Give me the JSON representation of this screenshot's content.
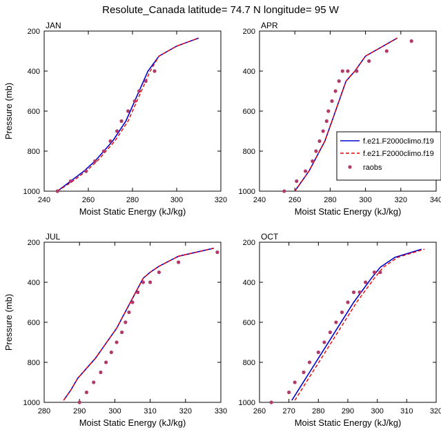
{
  "title": "Resolute_Canada  latitude= 74.7 N longitude= 95 W",
  "legend": {
    "entries": [
      "f.e21.F2000climo.f19",
      "f.e21.F2000climo.f19",
      "raobs"
    ]
  },
  "colors": {
    "model1": "#0000cd",
    "model2": "#ee0000",
    "raobs": "#b03a6a"
  },
  "chart_data": [
    {
      "type": "line",
      "panel": "JAN",
      "xlabel": "Moist Static Energy (kJ/kg)",
      "ylabel": "Pressure (mb)",
      "xlim": [
        240,
        320
      ],
      "ylim": [
        1000,
        200
      ],
      "y_inverted": true,
      "xticks": [
        240,
        260,
        280,
        300,
        320
      ],
      "yticks": [
        200,
        400,
        600,
        800,
        1000
      ],
      "series": [
        {
          "name": "f.e21.F2000climo.f19",
          "x": [
            246,
            252,
            258,
            263,
            267,
            271,
            274,
            277,
            279,
            281,
            283,
            285,
            287,
            292,
            300,
            310
          ],
          "y": [
            1000,
            950,
            900,
            850,
            800,
            750,
            700,
            650,
            600,
            550,
            500,
            450,
            400,
            325,
            275,
            235
          ]
        },
        {
          "name": "f.e21.F2000climo.f19",
          "x": [
            246,
            253,
            259,
            264,
            268,
            272,
            275,
            278,
            280,
            282,
            284,
            286,
            288,
            292,
            300,
            310
          ],
          "y": [
            1000,
            950,
            900,
            850,
            800,
            750,
            700,
            650,
            600,
            550,
            500,
            450,
            400,
            325,
            275,
            235
          ]
        },
        {
          "name": "raobs",
          "x": [
            246,
            252,
            259,
            263,
            267,
            270,
            273,
            275,
            278,
            281,
            283,
            286,
            290
          ],
          "y": [
            1000,
            950,
            900,
            850,
            800,
            750,
            700,
            650,
            600,
            550,
            500,
            450,
            400
          ]
        }
      ]
    },
    {
      "type": "line",
      "panel": "APR",
      "xlabel": "Moist Static Energy (kJ/kg)",
      "ylabel": "",
      "xlim": [
        240,
        340
      ],
      "ylim": [
        1000,
        200
      ],
      "y_inverted": true,
      "xticks": [
        240,
        260,
        280,
        300,
        320,
        340
      ],
      "yticks": [
        200,
        400,
        600,
        800,
        1000
      ],
      "series": [
        {
          "name": "f.e21.F2000climo.f19",
          "x": [
            260,
            264,
            268,
            271,
            274,
            277,
            279,
            281,
            283,
            285,
            287,
            289,
            294,
            300,
            310,
            318
          ],
          "y": [
            1000,
            950,
            900,
            850,
            800,
            750,
            700,
            650,
            600,
            550,
            500,
            450,
            400,
            325,
            275,
            235
          ]
        },
        {
          "name": "f.e21.F2000climo.f19",
          "x": [
            260,
            264,
            268,
            271,
            274,
            277,
            279,
            281,
            283,
            285,
            287,
            289,
            294,
            300,
            310,
            318
          ],
          "y": [
            1000,
            950,
            900,
            850,
            800,
            750,
            700,
            650,
            600,
            550,
            500,
            450,
            400,
            325,
            275,
            235
          ]
        },
        {
          "name": "raobs",
          "x": [
            254,
            261,
            266,
            270,
            272,
            274,
            276,
            278,
            279,
            281,
            283,
            285,
            287,
            290,
            295,
            302,
            312,
            326
          ],
          "y": [
            1000,
            950,
            900,
            850,
            800,
            750,
            700,
            650,
            600,
            550,
            500,
            450,
            400,
            400,
            400,
            350,
            300,
            250
          ]
        }
      ]
    },
    {
      "type": "line",
      "panel": "JUL",
      "xlabel": "Moist Static Energy (kJ/kg)",
      "ylabel": "Pressure (mb)",
      "xlim": [
        280,
        330
      ],
      "ylim": [
        1000,
        200
      ],
      "y_inverted": true,
      "xticks": [
        280,
        290,
        300,
        310,
        320,
        330
      ],
      "yticks": [
        200,
        400,
        600,
        800,
        1000
      ],
      "series": [
        {
          "name": "f.e21.F2000climo.f19",
          "x": [
            285.5,
            287.5,
            289.5,
            292,
            294.5,
            296.5,
            298.5,
            300.5,
            302,
            303.5,
            305,
            306.5,
            308,
            310,
            312.5,
            318,
            328
          ],
          "y": [
            990,
            940,
            880,
            830,
            780,
            730,
            680,
            630,
            580,
            530,
            480,
            430,
            380,
            350,
            320,
            270,
            230
          ]
        },
        {
          "name": "f.e21.F2000climo.f19",
          "x": [
            285.5,
            287.5,
            289.5,
            292,
            294.5,
            296.5,
            298.5,
            300.5,
            302,
            303.5,
            305,
            306.5,
            308,
            310,
            312.5,
            318,
            328
          ],
          "y": [
            990,
            940,
            880,
            830,
            780,
            730,
            680,
            630,
            580,
            530,
            480,
            430,
            380,
            350,
            320,
            270,
            230
          ]
        },
        {
          "name": "raobs",
          "x": [
            290,
            292,
            294,
            296,
            297.5,
            299,
            300.5,
            302,
            303,
            304,
            305,
            306.5,
            308,
            310,
            312.5,
            318,
            329
          ],
          "y": [
            1000,
            950,
            900,
            850,
            800,
            750,
            700,
            650,
            600,
            550,
            500,
            450,
            400,
            400,
            350,
            300,
            250
          ]
        }
      ]
    },
    {
      "type": "line",
      "panel": "OCT",
      "xlabel": "Moist Static Energy (kJ/kg)",
      "ylabel": "",
      "xlim": [
        260,
        320
      ],
      "ylim": [
        1000,
        200
      ],
      "y_inverted": true,
      "xticks": [
        260,
        270,
        280,
        290,
        300,
        310,
        320
      ],
      "yticks": [
        200,
        400,
        600,
        800,
        1000
      ],
      "series": [
        {
          "name": "f.e21.F2000climo.f19",
          "x": [
            271,
            274,
            277,
            280,
            283,
            286,
            289,
            292,
            295,
            298,
            301,
            306,
            315
          ],
          "y": [
            990,
            920,
            850,
            780,
            710,
            640,
            570,
            500,
            440,
            380,
            325,
            275,
            235
          ]
        },
        {
          "name": "f.e21.F2000climo.f19",
          "x": [
            272,
            275,
            278,
            281,
            284,
            287,
            290,
            293,
            296,
            299,
            302,
            307,
            316
          ],
          "y": [
            990,
            920,
            850,
            780,
            710,
            640,
            570,
            500,
            440,
            380,
            325,
            275,
            235
          ]
        },
        {
          "name": "raobs",
          "x": [
            264,
            270,
            272,
            275,
            277,
            280,
            282,
            284,
            286,
            288,
            290,
            292,
            294,
            296,
            299,
            301
          ],
          "y": [
            1000,
            950,
            900,
            850,
            800,
            750,
            700,
            650,
            600,
            550,
            500,
            450,
            450,
            400,
            350,
            350
          ]
        }
      ]
    }
  ]
}
